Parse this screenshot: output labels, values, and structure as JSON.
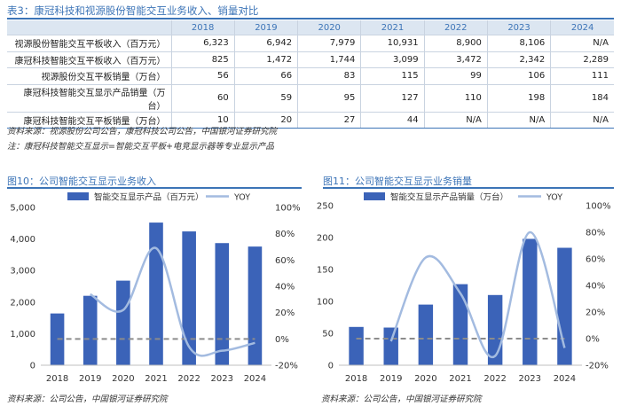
{
  "table3": {
    "title": "表3：康冠科技和视源股份智能交互业务收入、销量对比",
    "headers": [
      "",
      "2018",
      "2019",
      "2020",
      "2021",
      "2022",
      "2023",
      "2024"
    ],
    "rows": [
      [
        "视源股份智能交互平板收入（百万元）",
        "6,323",
        "6,942",
        "7,979",
        "10,931",
        "8,900",
        "8,106",
        "N/A"
      ],
      [
        "康冠科技智能交互平板收入（百万元）",
        "825",
        "1,472",
        "1,744",
        "3,099",
        "3,472",
        "2,342",
        "2,289"
      ],
      [
        "视源股份交互平板销量（万台）",
        "56",
        "66",
        "83",
        "115",
        "99",
        "106",
        "111"
      ],
      [
        "康冠科技智能交互显示产品销量（万台）",
        "60",
        "59",
        "95",
        "127",
        "110",
        "198",
        "184"
      ],
      [
        "康冠科技智能交互平板销量（万台）",
        "10",
        "20",
        "27",
        "44",
        "N/A",
        "N/A",
        "N/A"
      ]
    ],
    "source": "资料来源：视源股份公司公告，康冠科技公司公告，中国银河证券研究院",
    "note": "注：康冠科技智能交互显示=智能交互平板+电竞显示器等专业显示产品"
  },
  "chart_data": [
    {
      "type": "bar",
      "title": "图10：公司智能交互显示业务收入",
      "categories": [
        "2018",
        "2019",
        "2020",
        "2021",
        "2022",
        "2023",
        "2024"
      ],
      "series": [
        {
          "name": "智能交互显示产品（百万元）",
          "type": "bar",
          "axis": "left",
          "values": [
            1640,
            2200,
            2680,
            4520,
            4240,
            3870,
            3760
          ]
        },
        {
          "name": "YOY",
          "type": "line",
          "axis": "right",
          "values": [
            null,
            34,
            22,
            69,
            -6,
            -9,
            -3
          ]
        }
      ],
      "ylim": [
        0,
        5000
      ],
      "yticks": [
        "0",
        "1,000",
        "2,000",
        "3,000",
        "4,000",
        "5,000"
      ],
      "y2lim": [
        -20,
        100
      ],
      "y2ticks": [
        "-20%",
        "0%",
        "20%",
        "40%",
        "60%",
        "80%",
        "100%"
      ],
      "reference_line": 0,
      "source": "资料来源：公司公告，中国银河证券研究院"
    },
    {
      "type": "bar",
      "title": "图11：公司智能交互显示业务销量",
      "categories": [
        "2018",
        "2019",
        "2020",
        "2021",
        "2022",
        "2023",
        "2024"
      ],
      "series": [
        {
          "name": "智能交互显示产品销量（万台）",
          "type": "bar",
          "axis": "left",
          "values": [
            60,
            59,
            95,
            127,
            110,
            198,
            184
          ]
        },
        {
          "name": "YOY",
          "type": "line",
          "axis": "right",
          "values": [
            null,
            -2,
            61,
            34,
            -13,
            80,
            -7
          ]
        }
      ],
      "ylim": [
        0,
        250
      ],
      "yticks": [
        "0",
        "50",
        "100",
        "150",
        "200",
        "250"
      ],
      "y2lim": [
        -20,
        100
      ],
      "y2ticks": [
        "-20%",
        "0%",
        "20%",
        "40%",
        "60%",
        "80%",
        "100%"
      ],
      "reference_line": 0,
      "source": "资料来源：公司公告，中国银河证券研究院"
    }
  ],
  "colors": {
    "bar": "#3b63b8",
    "line": "#a3bbe0",
    "accent": "#3c74b7",
    "ref": "#8c8c8c"
  }
}
